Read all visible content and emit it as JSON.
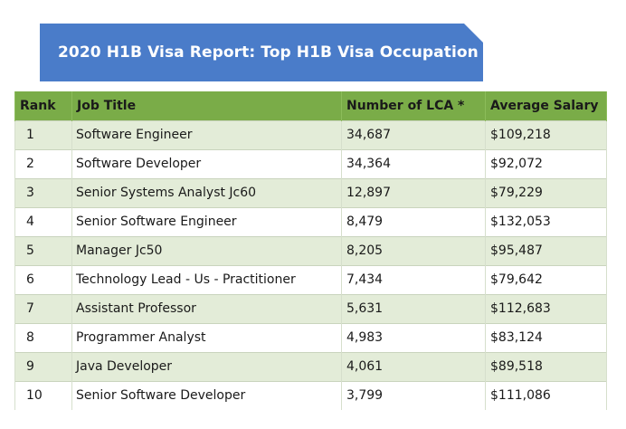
{
  "banner": {
    "title": "2020 H1B Visa Report: Top H1B Visa Occupation"
  },
  "table": {
    "headers": {
      "rank": "Rank",
      "job_title": "Job Title",
      "lca": "Number of LCA *",
      "salary": "Average Salary"
    },
    "rows": [
      {
        "rank": "1",
        "job": "Software Engineer",
        "lca": "34,687",
        "salary": "$109,218"
      },
      {
        "rank": "2",
        "job": "Software Developer",
        "lca": "34,364",
        "salary": "$92,072"
      },
      {
        "rank": "3",
        "job": "Senior Systems Analyst Jc60",
        "lca": "12,897",
        "salary": "$79,229"
      },
      {
        "rank": "4",
        "job": "Senior Software Engineer",
        "lca": "8,479",
        "salary": "$132,053"
      },
      {
        "rank": "5",
        "job": "Manager Jc50",
        "lca": "8,205",
        "salary": "$95,487"
      },
      {
        "rank": "6",
        "job": "Technology Lead - Us - Practitioner",
        "lca": "7,434",
        "salary": "$79,642"
      },
      {
        "rank": "7",
        "job": "Assistant Professor",
        "lca": "5,631",
        "salary": "$112,683"
      },
      {
        "rank": "8",
        "job": "Programmer Analyst",
        "lca": "4,983",
        "salary": "$83,124"
      },
      {
        "rank": "9",
        "job": "Java Developer",
        "lca": "4,061",
        "salary": "$89,518"
      },
      {
        "rank": "10",
        "job": "Senior Software Developer",
        "lca": "3,799",
        "salary": "$111,086"
      }
    ]
  },
  "colors": {
    "banner": "#4a7cc9",
    "header": "#7aac48",
    "row_alt": "#e3ecd8"
  }
}
